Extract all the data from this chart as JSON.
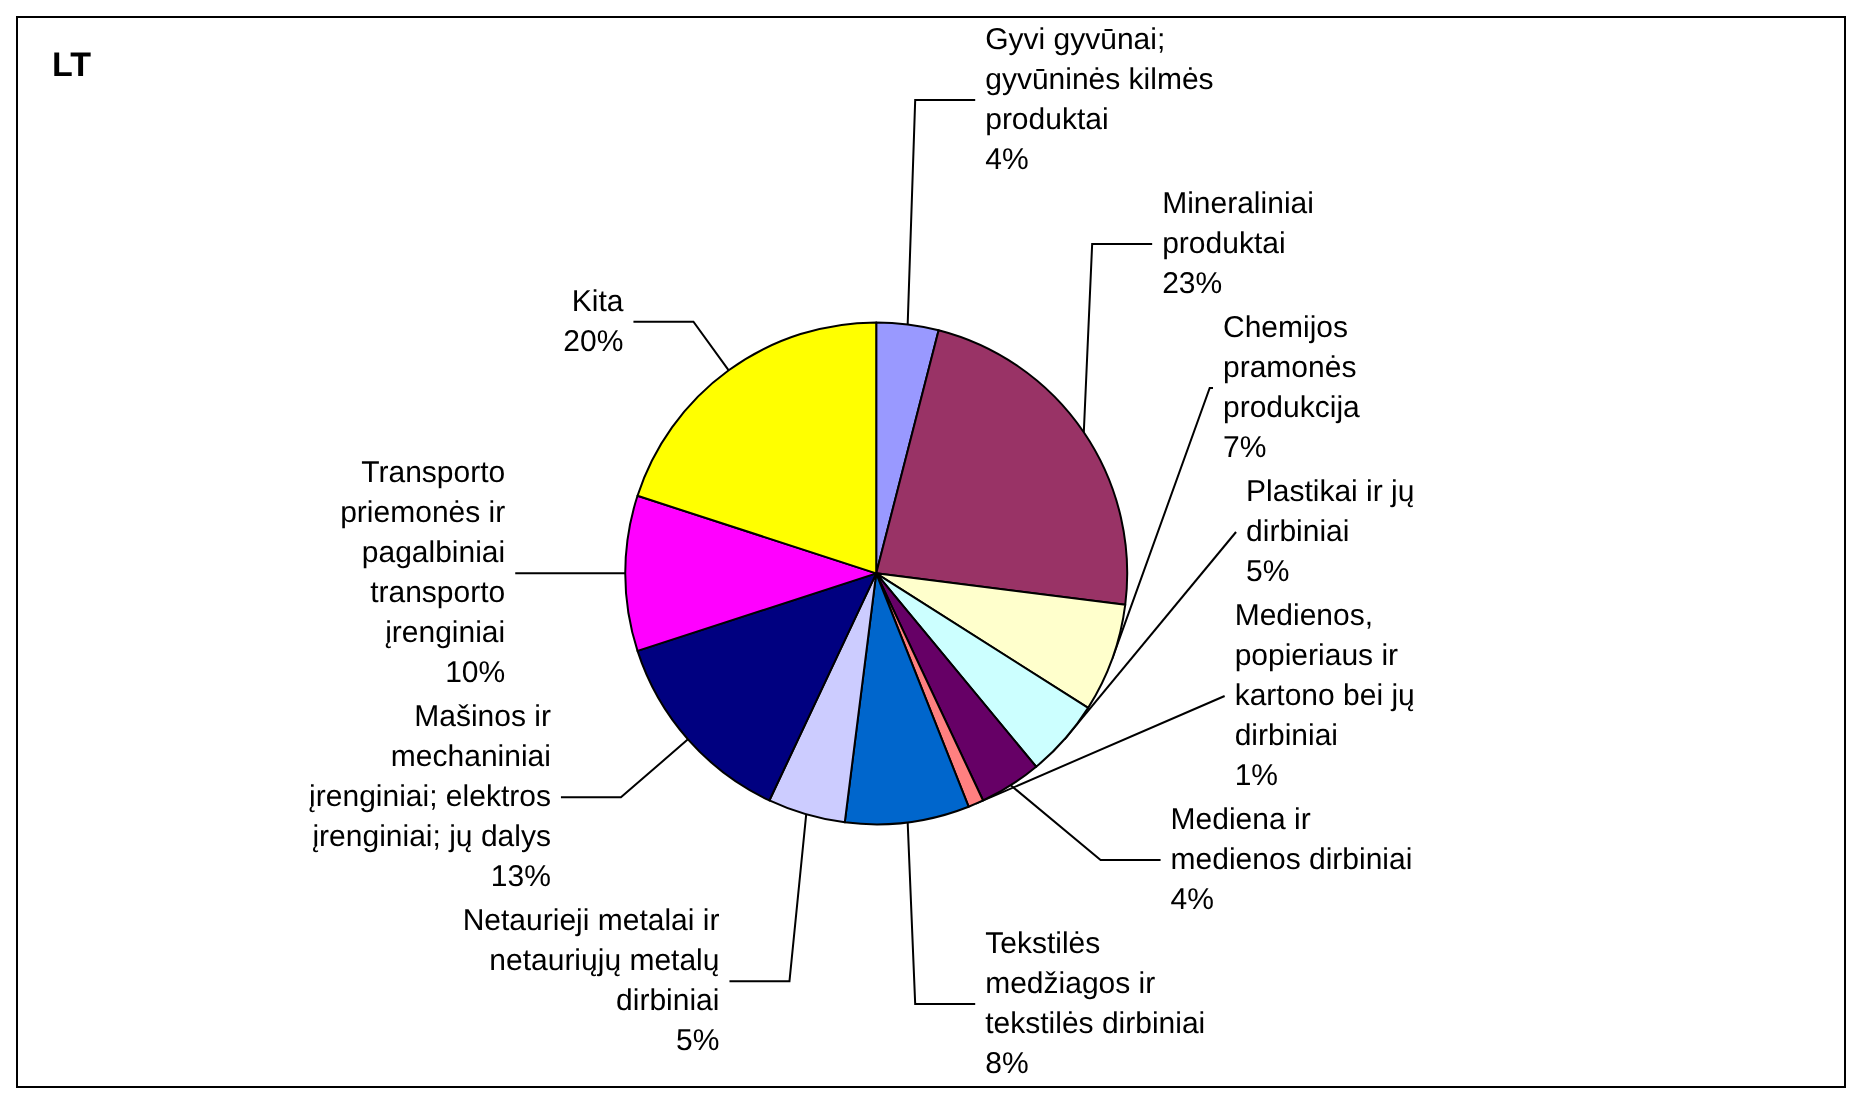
{
  "chart_data": {
    "type": "pie",
    "title": "LT",
    "categories": [
      "Gyvi gyvūnai;\ngyvūninės kilmės\nproduktai",
      "Mineraliniai\nproduktai",
      "Chemijos\npramonės\nprodukcija",
      "Plastikai ir jų\ndirbiniai",
      "Mediena ir\nmedienos dirbiniai",
      "Medienos,\npopieriaus ir\nkartono bei jų\ndirbiniai",
      "Tekstilės\nmedžiagos ir\ntekstilės dirbiniai",
      "Netaurieji metalai ir\nnetauriųjų metalų\ndirbiniai",
      "Mašinos ir\nmechaniniai\nįrenginiai; elektros\nįrenginiai; jų dalys",
      "Transporto\npriemonės ir\npagalbiniai\ntransporto\nįrenginiai",
      "Kita"
    ],
    "values": [
      4,
      23,
      7,
      5,
      4,
      1,
      8,
      5,
      13,
      10,
      20
    ],
    "value_labels": [
      "4%",
      "23%",
      "7%",
      "5%",
      "4%",
      "1%",
      "8%",
      "5%",
      "13%",
      "10%",
      "20%"
    ],
    "colors": [
      "#9999ff",
      "#993366",
      "#ffffcc",
      "#ccffff",
      "#660066",
      "#ff8080",
      "#0066cc",
      "#ccccff",
      "#000080",
      "#ff00ff",
      "#ffff00"
    ],
    "legend": false
  }
}
